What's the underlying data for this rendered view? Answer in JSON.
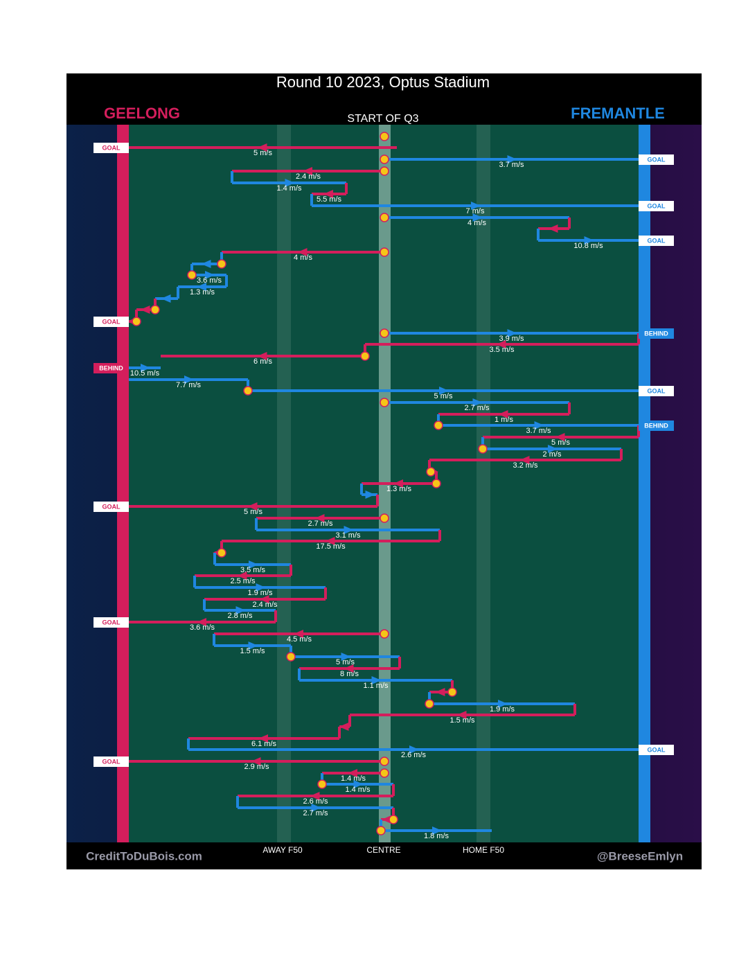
{
  "header": {
    "title": "Round 10 2023, Optus Stadium",
    "home_team": "GEELONG",
    "away_team": "FREMANTLE",
    "start": "START OF Q3"
  },
  "speed_labels": [
    "5 m/s",
    "3.7 m/s",
    "2.4 m/s",
    "1.4 m/s",
    "5.5 m/s",
    "7 m/s",
    "4 m/s",
    "10.8 m/s",
    "4 m/s",
    "3.6 m/s",
    "1.3 m/s",
    "3.9 m/s",
    "3.5 m/s",
    "6 m/s",
    "10.5 m/s",
    "7.7 m/s",
    "5 m/s",
    "2.7 m/s",
    "1 m/s",
    "3.7 m/s",
    "5 m/s",
    "2 m/s",
    "3.2 m/s",
    "1.3 m/s",
    "5 m/s",
    "2.7 m/s",
    "3.1 m/s",
    "17.5 m/s",
    "3.5 m/s",
    "2.5 m/s",
    "1.9 m/s",
    "2.4 m/s",
    "2.8 m/s",
    "3.6 m/s",
    "4.5 m/s",
    "1.5 m/s",
    "5 m/s",
    "8 m/s",
    "1.1 m/s",
    "1.9 m/s",
    "1.5 m/s",
    "6.1 m/s",
    "2.6 m/s",
    "2.9 m/s",
    "1.4 m/s",
    "1.4 m/s",
    "2.6 m/s",
    "2.7 m/s",
    "1.8 m/s"
  ],
  "outcomes": [
    "GOAL",
    "GOAL",
    "GOAL",
    "GOAL",
    "GOAL",
    "BEHIND",
    "BEHIND",
    "GOAL",
    "BEHIND",
    "GOAL",
    "GOAL",
    "GOAL",
    "GOAL"
  ],
  "field_labels": [
    "AWAY F50",
    "CENTRE",
    "HOME F50"
  ],
  "footer": {
    "left": "CreditToDuBois.com",
    "right": "@BreeseEmlyn"
  }
}
